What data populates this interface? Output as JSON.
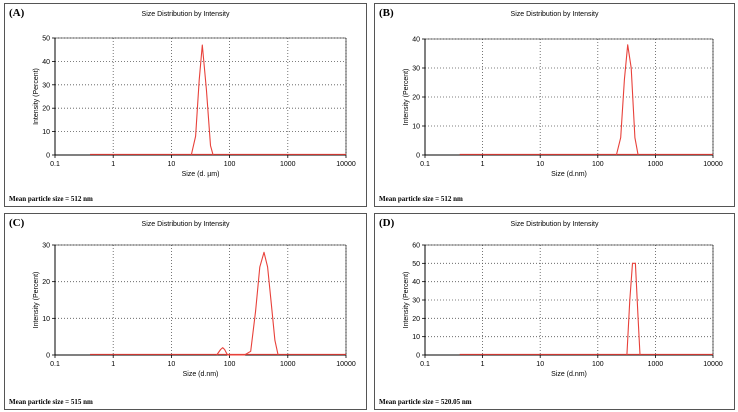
{
  "panels": [
    {
      "label": "(A)",
      "title": "Size Distribution by Intensity",
      "mean_text": "Mean particle size = 512 nm"
    },
    {
      "label": "(B)",
      "title": "Size Distribution by Intensity",
      "mean_text": "Mean particle size = 512 nm"
    },
    {
      "label": "(C)",
      "title": "Size Distribution by Intensity",
      "mean_text": "Mean particle size = 515 nm"
    },
    {
      "label": "(D)",
      "title": "Size Distribution by Intensity",
      "mean_text": "Mean particle size = 520.05 nm"
    }
  ],
  "colors": {
    "series": "#e8413a",
    "baseline": "#333333",
    "grid": "#555555"
  },
  "chart_data": [
    {
      "type": "line",
      "title": "Size Distribution by Intensity",
      "xlabel": "Size (d. µm)",
      "ylabel": "Intensity (Percent)",
      "xscale": "log",
      "xlim": [
        0.1,
        10000
      ],
      "xticks": [
        "0.1",
        "1",
        "10",
        "100",
        "1000",
        "10000"
      ],
      "ylim": [
        0,
        50
      ],
      "yticks": [
        "0",
        "10",
        "20",
        "30",
        "40",
        "50"
      ],
      "grid": true,
      "series": [
        {
          "x": [
            22,
            26,
            30,
            34,
            40,
            47,
            52
          ],
          "y": [
            0,
            8,
            32,
            47,
            28,
            4,
            0
          ]
        }
      ]
    },
    {
      "type": "line",
      "title": "Size Distribution by Intensity",
      "xlabel": "Size (d.nm)",
      "ylabel": "Intensity (Percent)",
      "xscale": "log",
      "xlim": [
        0.1,
        10000
      ],
      "xticks": [
        "0.1",
        "1",
        "10",
        "100",
        "1000",
        "10000"
      ],
      "ylim": [
        0,
        40
      ],
      "yticks": [
        "0",
        "10",
        "20",
        "30",
        "40"
      ],
      "grid": true,
      "series": [
        {
          "x": [
            210,
            250,
            290,
            330,
            380,
            440,
            500
          ],
          "y": [
            0,
            6,
            26,
            38,
            30,
            6,
            0
          ]
        }
      ]
    },
    {
      "type": "line",
      "title": "Size Distribution by Intensity",
      "xlabel": "Size (d.nm)",
      "ylabel": "Intensity (Percent)",
      "xscale": "log",
      "xlim": [
        0.1,
        10000
      ],
      "xticks": [
        "0.1",
        "1",
        "10",
        "100",
        "1000",
        "10000"
      ],
      "ylim": [
        0,
        30
      ],
      "yticks": [
        "0",
        "10",
        "20",
        "30"
      ],
      "grid": true,
      "series": [
        {
          "x": [
            60,
            70,
            76,
            82,
            92,
            180,
            230,
            280,
            330,
            390,
            450,
            520,
            600,
            680
          ],
          "y": [
            0,
            1.5,
            2,
            1.5,
            0,
            0,
            1,
            12,
            24,
            28,
            24,
            14,
            4,
            0
          ]
        }
      ]
    },
    {
      "type": "line",
      "title": "Size Distribution by Intensity",
      "xlabel": "Size (d.nm)",
      "ylabel": "Intensity (Percent)",
      "xscale": "log",
      "xlim": [
        0.1,
        10000
      ],
      "xticks": [
        "0.1",
        "1",
        "10",
        "100",
        "1000",
        "10000"
      ],
      "ylim": [
        0,
        60
      ],
      "yticks": [
        "0",
        "10",
        "20",
        "30",
        "40",
        "50",
        "60"
      ],
      "grid": true,
      "series": [
        {
          "x": [
            320,
            360,
            400,
            450,
            500,
            540
          ],
          "y": [
            0,
            30,
            50,
            50,
            20,
            0
          ]
        }
      ]
    }
  ]
}
